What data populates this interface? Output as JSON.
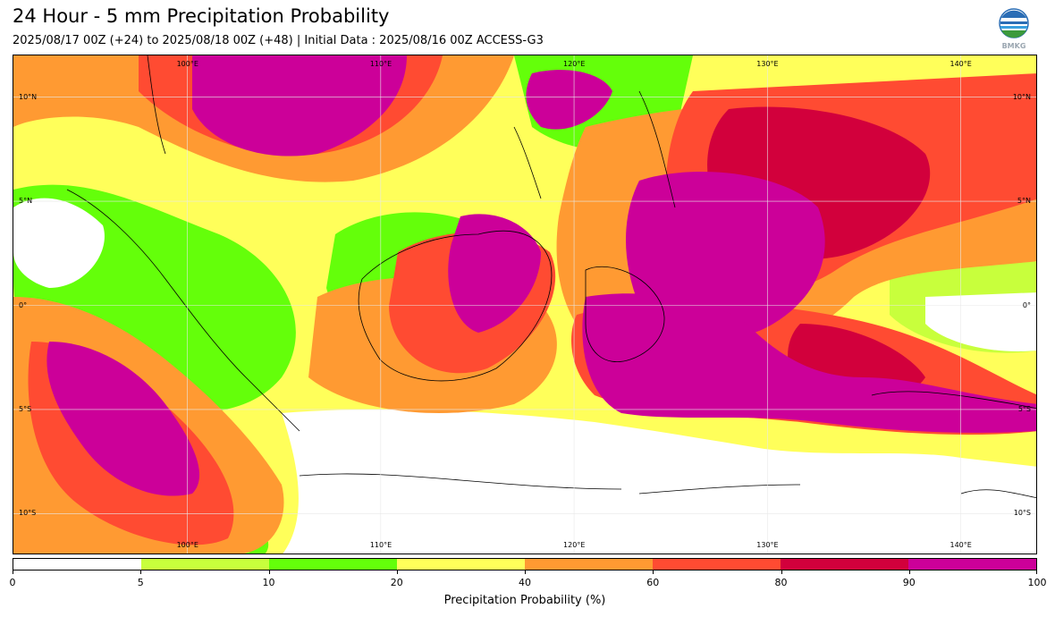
{
  "header": {
    "title": "24 Hour - 5 mm Precipitation Probability",
    "subtitle": "2025/08/17 00Z (+24) to 2025/08/18 00Z (+48) | Initial Data : 2025/08/16 00Z ACCESS-G3"
  },
  "logo": {
    "text": "BMKG",
    "icon": "bmkg-logo-icon"
  },
  "map": {
    "lon_range": [
      91,
      144
    ],
    "lat_range": [
      -12,
      12
    ],
    "lon_ticks": [
      "100°E",
      "110°E",
      "120°E",
      "130°E",
      "140°E"
    ],
    "lat_ticks": [
      "10°N",
      "5°N",
      "0°",
      "5°S",
      "10°S"
    ]
  },
  "colorbar": {
    "title": "Precipitation Probability (%)",
    "labels": [
      "0",
      "5",
      "10",
      "20",
      "40",
      "60",
      "80",
      "90",
      "100"
    ],
    "colors": [
      "#ffffff",
      "#c8ff3c",
      "#64ff0a",
      "#ffff5a",
      "#ff9a32",
      "#ff4b32",
      "#d2003c",
      "#cc0099"
    ]
  }
}
